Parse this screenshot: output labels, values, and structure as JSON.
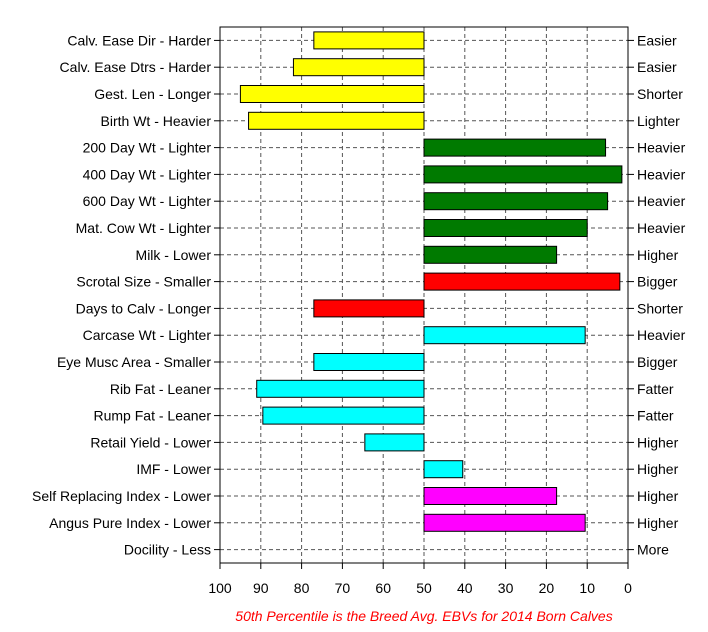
{
  "chart_data": {
    "type": "bar",
    "orientation": "horizontal-diverging",
    "baseline": 50,
    "xlim": [
      100,
      0
    ],
    "x_reversed": true,
    "xticks": [
      100,
      90,
      80,
      70,
      60,
      50,
      40,
      30,
      20,
      10,
      0
    ],
    "grid": true,
    "caption": "50th Percentile is the Breed Avg. EBVs for 2014 Born Calves",
    "rows": [
      {
        "left": "Calv. Ease Dir - Harder",
        "right": "Easier",
        "value": 77,
        "color": "#ffff00"
      },
      {
        "left": "Calv. Ease Dtrs - Harder",
        "right": "Easier",
        "value": 82,
        "color": "#ffff00"
      },
      {
        "left": "Gest. Len - Longer",
        "right": "Shorter",
        "value": 95,
        "color": "#ffff00"
      },
      {
        "left": "Birth Wt - Heavier",
        "right": "Lighter",
        "value": 93,
        "color": "#ffff00"
      },
      {
        "left": "200 Day Wt - Lighter",
        "right": "Heavier",
        "value": 5.5,
        "color": "#007a00"
      },
      {
        "left": "400 Day Wt - Lighter",
        "right": "Heavier",
        "value": 1.5,
        "color": "#007a00"
      },
      {
        "left": "600 Day Wt - Lighter",
        "right": "Heavier",
        "value": 5,
        "color": "#007a00"
      },
      {
        "left": "Mat. Cow Wt - Lighter",
        "right": "Heavier",
        "value": 10,
        "color": "#007a00"
      },
      {
        "left": "Milk - Lower",
        "right": "Higher",
        "value": 17.5,
        "color": "#007a00"
      },
      {
        "left": "Scrotal Size - Smaller",
        "right": "Bigger",
        "value": 2,
        "color": "#ff0000"
      },
      {
        "left": "Days to Calv - Longer",
        "right": "Shorter",
        "value": 77,
        "color": "#ff0000"
      },
      {
        "left": "Carcase Wt - Lighter",
        "right": "Heavier",
        "value": 10.5,
        "color": "#00ffff"
      },
      {
        "left": "Eye Musc Area - Smaller",
        "right": "Bigger",
        "value": 77,
        "color": "#00ffff"
      },
      {
        "left": "Rib Fat - Leaner",
        "right": "Fatter",
        "value": 91,
        "color": "#00ffff"
      },
      {
        "left": "Rump Fat - Leaner",
        "right": "Fatter",
        "value": 89.5,
        "color": "#00ffff"
      },
      {
        "left": "Retail Yield - Lower",
        "right": "Higher",
        "value": 64.5,
        "color": "#00ffff"
      },
      {
        "left": "IMF - Lower",
        "right": "Higher",
        "value": 40.5,
        "color": "#00ffff"
      },
      {
        "left": "Self Replacing Index - Lower",
        "right": "Higher",
        "value": 17.5,
        "color": "#ff00ff"
      },
      {
        "left": "Angus Pure Index - Lower",
        "right": "Higher",
        "value": 10.5,
        "color": "#ff00ff"
      },
      {
        "left": "Docility - Less",
        "right": "More",
        "value": null,
        "color": "#ffffff"
      }
    ]
  }
}
